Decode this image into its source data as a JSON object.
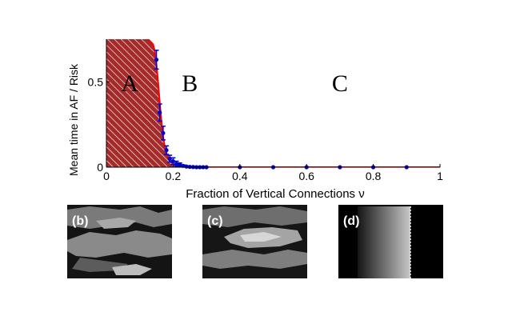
{
  "chart_data": {
    "type": "line",
    "title": "",
    "xlabel": "Fraction of Vertical Connections ν",
    "ylabel": "Mean time in AF / Risk",
    "xlim": [
      0,
      1
    ],
    "ylim": [
      0,
      0.75
    ],
    "x_ticks": [
      {
        "value": 0,
        "label": "0"
      },
      {
        "value": 0.2,
        "label": "0.2"
      },
      {
        "value": 0.4,
        "label": "0.4"
      },
      {
        "value": 0.6,
        "label": "0.6"
      },
      {
        "value": 0.8,
        "label": "0.8"
      },
      {
        "value": 1,
        "label": "1"
      }
    ],
    "y_ticks": [
      {
        "value": 0,
        "label": "0"
      },
      {
        "value": 0.5,
        "label": "0.5"
      }
    ],
    "grid": false,
    "series": [
      {
        "kind": "simulation-points",
        "color": "#0000cc",
        "x": [
          0.15,
          0.16,
          0.17,
          0.18,
          0.19,
          0.2,
          0.21,
          0.22,
          0.23,
          0.24,
          0.25,
          0.26,
          0.27,
          0.28,
          0.29,
          0.3,
          0.4,
          0.5,
          0.6,
          0.7,
          0.8,
          0.9
        ],
        "y": [
          0.63,
          0.32,
          0.2,
          0.1,
          0.05,
          0.035,
          0.02,
          0.015,
          0.008,
          0.004,
          0.002,
          0.001,
          0,
          0,
          0,
          0,
          0,
          0,
          0,
          0,
          0,
          0
        ],
        "error": [
          0.055,
          0.05,
          0.04,
          0.025,
          0.02,
          0.02,
          0.015,
          0.01,
          0.005,
          0.003,
          0.002,
          0.001,
          0,
          0,
          0,
          0,
          0,
          0,
          0,
          0,
          0,
          0
        ]
      },
      {
        "kind": "theory-curve",
        "color": "#ff0000",
        "x": [
          0.12,
          0.13,
          0.14,
          0.145,
          0.15,
          0.155,
          0.16,
          0.165,
          0.17,
          0.175,
          0.18,
          0.19,
          0.2,
          0.21,
          0.22,
          0.24,
          0.26,
          0.3,
          0.4,
          0.6,
          0.8,
          1.0
        ],
        "y": [
          0.76,
          0.74,
          0.72,
          0.68,
          0.6,
          0.5,
          0.38,
          0.27,
          0.18,
          0.12,
          0.08,
          0.04,
          0.02,
          0.01,
          0.006,
          0.002,
          0.001,
          0,
          0,
          0,
          0,
          0
        ]
      }
    ],
    "shaded_region": {
      "color": "#a52a2a",
      "hatch": "#ffffff"
    },
    "annotations": [
      {
        "text": "A",
        "x": 0.07,
        "y": 0.68
      },
      {
        "text": "B",
        "x": 0.25,
        "y": 0.68
      },
      {
        "text": "C",
        "x": 0.7,
        "y": 0.68
      }
    ]
  },
  "panels": [
    {
      "label": "(b)"
    },
    {
      "label": "(c)"
    },
    {
      "label": "(d)"
    }
  ]
}
